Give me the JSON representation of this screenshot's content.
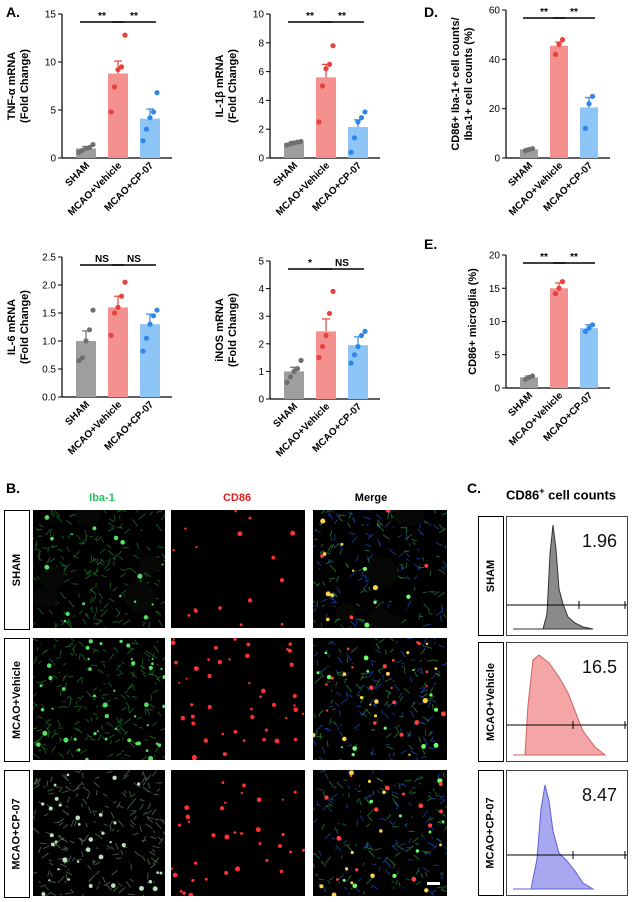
{
  "panel_letters": {
    "A": "A.",
    "B": "B.",
    "C": "C.",
    "D": "D.",
    "E": "E."
  },
  "colors": {
    "sham": "#9e9e9e",
    "vehicle": "#f4908e",
    "cp07": "#8ec5f7",
    "dot_sham": "#6f6f6f",
    "dot_vehicle": "#e8413e",
    "dot_cp07": "#2e86e8",
    "green": "#22c55e",
    "red": "#e21d1d",
    "flow_gray": "#8a8a8a",
    "flow_red": "#f4a6a6",
    "flow_blue": "#a8a8f0"
  },
  "chart_data": [
    {
      "id": "tnf",
      "type": "bar",
      "ylabel": [
        "TNF-α mRNA",
        "(Fold Change)"
      ],
      "categories": [
        "SHAM",
        "MCAO+Vehicle",
        "MCAO+CP-07"
      ],
      "values": [
        1.0,
        8.8,
        4.1
      ],
      "errors": [
        0.2,
        1.3,
        1.0
      ],
      "points": [
        [
          0.6,
          0.8,
          1.0,
          1.1,
          1.4
        ],
        [
          4.8,
          7.4,
          9.2,
          9.5,
          12.8
        ],
        [
          1.8,
          3.0,
          4.2,
          4.8,
          6.8
        ]
      ],
      "ylim": [
        0,
        15
      ],
      "yticks": [
        0,
        5,
        10,
        15
      ],
      "sig": [
        "**",
        "**"
      ]
    },
    {
      "id": "il1b",
      "type": "bar",
      "ylabel": [
        "IL-1β mRNA",
        "(Fold Change)"
      ],
      "categories": [
        "SHAM",
        "MCAO+Vehicle",
        "MCAO+CP-07"
      ],
      "values": [
        1.05,
        5.6,
        2.15
      ],
      "errors": [
        0.1,
        0.9,
        0.5
      ],
      "points": [
        [
          0.9,
          1.0,
          1.05,
          1.1,
          1.15
        ],
        [
          2.5,
          5.0,
          6.2,
          6.5,
          7.8
        ],
        [
          0.4,
          1.4,
          2.5,
          2.8,
          3.2
        ]
      ],
      "ylim": [
        0,
        10
      ],
      "yticks": [
        0,
        2,
        4,
        6,
        8,
        10
      ],
      "sig": [
        "**",
        "**"
      ]
    },
    {
      "id": "il6",
      "type": "bar",
      "ylabel": [
        "IL-6 mRNA",
        "(Fold Change)"
      ],
      "categories": [
        "SHAM",
        "MCAO+Vehicle",
        "MCAO+CP-07"
      ],
      "values": [
        1.0,
        1.6,
        1.3
      ],
      "errors": [
        0.18,
        0.2,
        0.18
      ],
      "points": [
        [
          0.65,
          0.7,
          1.0,
          1.2,
          1.55
        ],
        [
          1.1,
          1.5,
          1.6,
          1.8,
          2.05
        ],
        [
          0.82,
          1.05,
          1.3,
          1.45,
          1.55
        ]
      ],
      "ylim": [
        0,
        2.5
      ],
      "yticks": [
        0.0,
        0.5,
        1.0,
        1.5,
        2.0,
        2.5
      ],
      "sig": [
        "NS",
        "NS"
      ]
    },
    {
      "id": "inos",
      "type": "bar",
      "ylabel": [
        "iNOS mRNA",
        "(Fold Change)"
      ],
      "categories": [
        "SHAM",
        "MCAO+Vehicle",
        "MCAO+CP-07"
      ],
      "values": [
        1.0,
        2.45,
        1.95
      ],
      "errors": [
        0.15,
        0.45,
        0.3
      ],
      "points": [
        [
          0.6,
          0.8,
          1.0,
          1.1,
          1.4
        ],
        [
          1.5,
          1.9,
          2.3,
          3.1,
          3.9
        ],
        [
          1.3,
          1.6,
          1.9,
          2.3,
          2.45
        ]
      ],
      "ylim": [
        0,
        5
      ],
      "yticks": [
        0,
        1,
        2,
        3,
        4,
        5
      ],
      "sig": [
        "*",
        "NS"
      ]
    },
    {
      "id": "cd86iba",
      "type": "bar",
      "ylabel": [
        "CD86+ Iba-1+ cell counts/",
        "Iba-1+ cell counts (%)"
      ],
      "categories": [
        "SHAM",
        "MCAO+Vehicle",
        "MCAO+CP-07"
      ],
      "values": [
        3.5,
        45.5,
        20.5
      ],
      "errors": [
        0.4,
        1.5,
        4.0
      ],
      "points": [
        [
          3.0,
          3.4,
          3.8
        ],
        [
          42.0,
          46.0,
          48.0
        ],
        [
          12.0,
          22.0,
          25.0
        ]
      ],
      "ylim": [
        0,
        60
      ],
      "yticks": [
        0,
        20,
        40,
        60
      ],
      "sig": [
        "**",
        "**"
      ]
    },
    {
      "id": "cd86micro",
      "type": "bar",
      "ylabel": [
        "CD86+ microglia (%)"
      ],
      "categories": [
        "SHAM",
        "MCAO+Vehicle",
        "MCAO+CP-07"
      ],
      "values": [
        1.6,
        15.0,
        9.0
      ],
      "errors": [
        0.2,
        0.8,
        0.5
      ],
      "points": [
        [
          1.3,
          1.6,
          1.8
        ],
        [
          14.2,
          15.0,
          16.0
        ],
        [
          8.5,
          9.0,
          9.5
        ]
      ],
      "ylim": [
        0,
        20
      ],
      "yticks": [
        0,
        5,
        10,
        15,
        20
      ],
      "sig": [
        "**",
        "**"
      ]
    }
  ],
  "micro": {
    "col_labels": [
      "Iba-1",
      "CD86",
      "Merge"
    ],
    "row_labels": [
      "SHAM",
      "MCAO+Vehicle",
      "MCAO+CP-07"
    ]
  },
  "flow": {
    "title_main": "CD86",
    "title_sup": "+",
    "title_rest": " cell counts",
    "row_labels": [
      "SHAM",
      "MCAO+Vehicle",
      "MCAO+CP-07"
    ],
    "values": [
      "1.96",
      "16.5",
      "8.47"
    ]
  }
}
